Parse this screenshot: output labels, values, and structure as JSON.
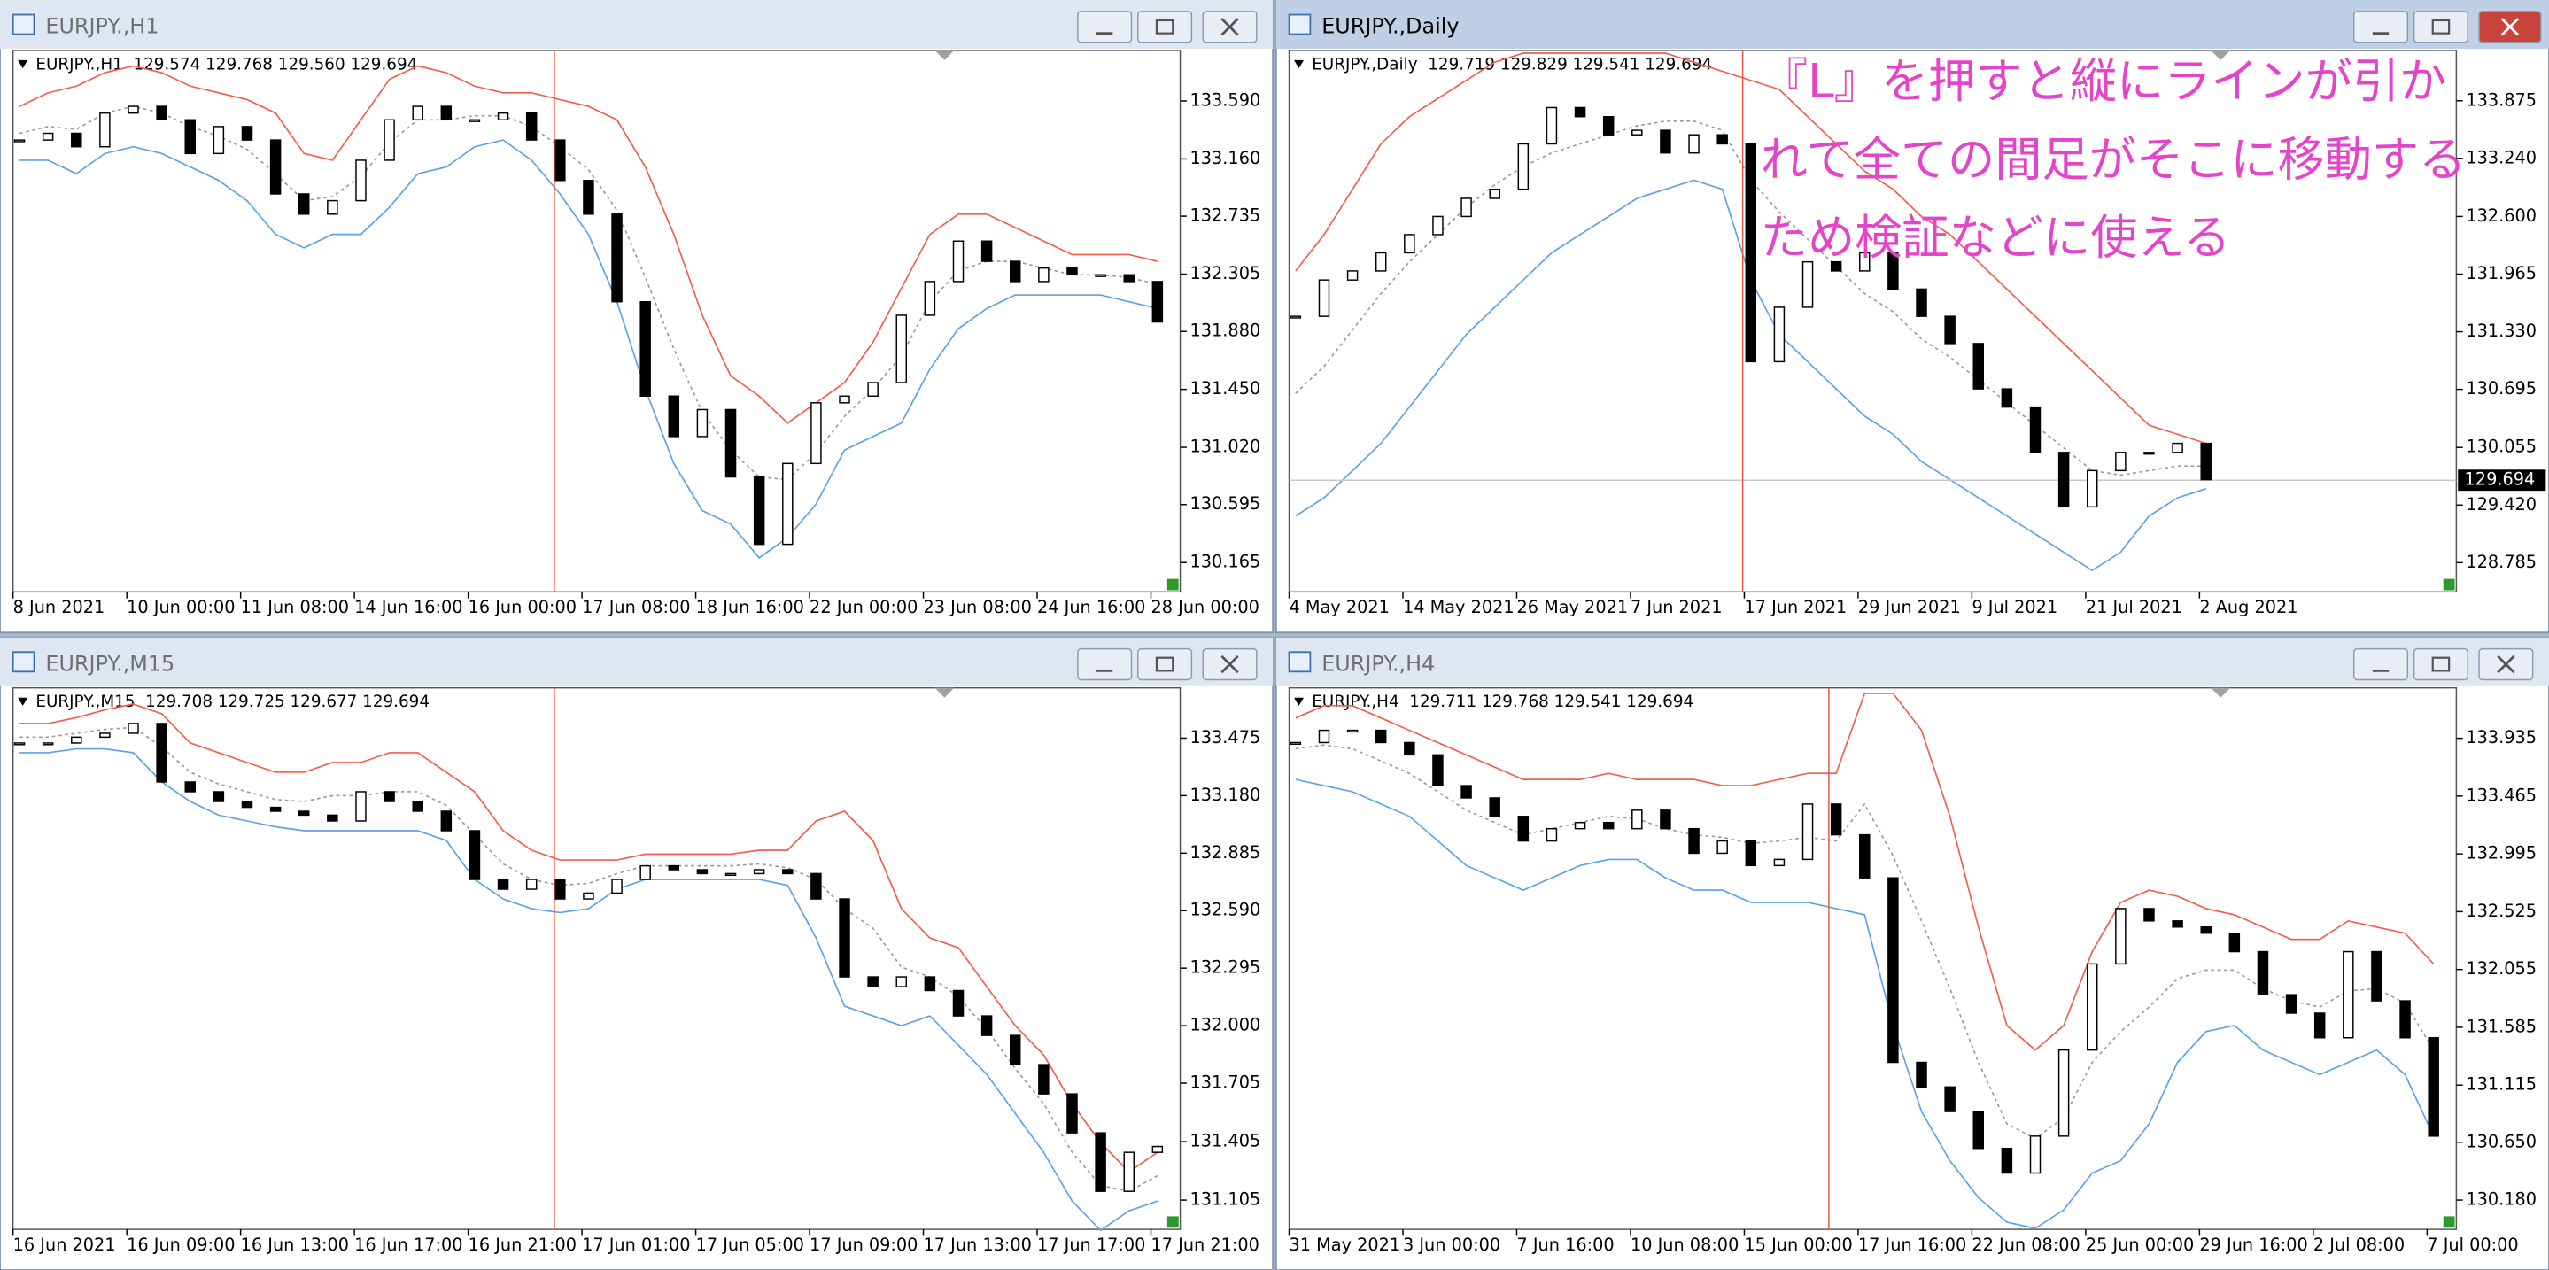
{
  "chart_data": [
    {
      "type": "candlestick",
      "window_title": "EURJPY.,H1",
      "header": "EURJPY.,H1  129.574 129.768 129.560 129.694",
      "categories": [
        "8 Jun 2021",
        null,
        null,
        null,
        "10 Jun 00:00",
        null,
        null,
        null,
        "11 Jun 08:00",
        null,
        null,
        null,
        "14 Jun 16:00",
        null,
        null,
        null,
        "16 Jun 00:00",
        null,
        null,
        null,
        "17 Jun 08:00",
        null,
        null,
        null,
        "18 Jun 16:00",
        null,
        null,
        null,
        "22 Jun 00:00",
        null,
        null,
        null,
        "23 Jun 08:00",
        null,
        null,
        null,
        "24 Jun 16:00",
        null,
        null,
        null,
        "28 Jun 00:00"
      ],
      "close": [
        133.3,
        133.35,
        133.25,
        133.5,
        133.55,
        133.45,
        133.2,
        133.4,
        133.3,
        132.9,
        132.75,
        132.85,
        133.15,
        133.45,
        133.55,
        133.45,
        133.45,
        133.5,
        133.3,
        133.0,
        132.75,
        132.1,
        131.4,
        131.1,
        131.3,
        130.8,
        130.3,
        130.9,
        131.35,
        131.4,
        131.5,
        132.0,
        132.25,
        132.55,
        132.4,
        132.25,
        132.35,
        132.3,
        132.3,
        132.25,
        131.95
      ],
      "upper_band": [
        133.55,
        133.65,
        133.7,
        133.8,
        133.85,
        133.8,
        133.7,
        133.65,
        133.6,
        133.5,
        133.2,
        133.15,
        133.45,
        133.75,
        133.85,
        133.8,
        133.7,
        133.65,
        133.65,
        133.6,
        133.55,
        133.45,
        133.1,
        132.6,
        132.0,
        131.55,
        131.4,
        131.2,
        131.35,
        131.5,
        131.8,
        132.2,
        132.6,
        132.75,
        132.75,
        132.65,
        132.55,
        132.45,
        132.45,
        132.45,
        132.4
      ],
      "middle_band": [
        133.35,
        133.4,
        133.38,
        133.5,
        133.55,
        133.5,
        133.4,
        133.33,
        133.23,
        133.05,
        132.85,
        132.88,
        133.03,
        133.28,
        133.45,
        133.45,
        133.48,
        133.48,
        133.4,
        133.25,
        133.08,
        132.78,
        132.28,
        131.75,
        131.28,
        131.0,
        130.8,
        130.78,
        130.98,
        131.25,
        131.45,
        131.7,
        132.1,
        132.33,
        132.4,
        132.4,
        132.35,
        132.3,
        132.3,
        132.28,
        132.23
      ],
      "lower_band": [
        133.15,
        133.15,
        133.05,
        133.2,
        133.25,
        133.2,
        133.1,
        133.0,
        132.85,
        132.6,
        132.5,
        132.6,
        132.6,
        132.8,
        133.05,
        133.1,
        133.25,
        133.3,
        133.15,
        132.9,
        132.6,
        132.1,
        131.45,
        130.9,
        130.55,
        130.45,
        130.2,
        130.35,
        130.6,
        131.0,
        131.1,
        131.2,
        131.6,
        131.9,
        132.05,
        132.15,
        132.15,
        132.15,
        132.15,
        132.1,
        132.05
      ],
      "ylim": [
        129.947,
        133.965
      ],
      "yticks": [
        {
          "value": 133.59,
          "label": "133.590"
        },
        {
          "value": 133.16,
          "label": "133.160"
        },
        132.735,
        132.305,
        {
          "value": 131.88,
          "label": "131.880"
        },
        {
          "value": 131.45,
          "label": "131.450"
        },
        {
          "value": 131.02,
          "label": "131.020"
        },
        130.595,
        130.165
      ],
      "bull_color": "#ffffff",
      "bear_color": "#000000",
      "upper_color": "#f25c4c",
      "middle_color": "#9a9a9a",
      "lower_color": "#5aa2e6"
    },
    {
      "type": "candlestick",
      "window_title": "EURJPY.,Daily",
      "header": "EURJPY.,Daily  129.719 129.829 129.541 129.694",
      "categories": [
        "4 May 2021",
        null,
        null,
        null,
        "14 May 2021",
        null,
        null,
        null,
        "26 May 2021",
        null,
        null,
        null,
        "7 Jun 2021",
        null,
        null,
        null,
        "17 Jun 2021",
        null,
        null,
        null,
        "29 Jun 2021",
        null,
        null,
        null,
        "9 Jul 2021",
        null,
        null,
        null,
        "21 Jul 2021",
        null,
        null,
        null,
        "2 Aug 2021"
      ],
      "close": [
        131.5,
        131.9,
        132.0,
        132.2,
        132.4,
        132.6,
        132.8,
        132.9,
        133.4,
        133.8,
        133.7,
        133.5,
        133.55,
        133.3,
        133.5,
        133.4,
        131.0,
        131.6,
        132.1,
        132.0,
        132.2,
        131.8,
        131.5,
        131.2,
        130.7,
        130.5,
        130.0,
        129.4,
        129.8,
        130.0,
        130.0,
        130.1,
        129.7
      ],
      "upper_band": [
        132.0,
        132.4,
        132.9,
        133.4,
        133.7,
        133.9,
        134.1,
        134.3,
        134.4,
        134.4,
        134.4,
        134.4,
        134.4,
        134.4,
        134.3,
        134.2,
        134.1,
        134.0,
        133.7,
        133.4,
        133.1,
        132.9,
        132.6,
        132.4,
        132.1,
        131.8,
        131.5,
        131.2,
        130.9,
        130.6,
        130.3,
        130.2,
        130.1
      ],
      "middle_band": [
        130.65,
        130.95,
        131.35,
        131.75,
        132.1,
        132.4,
        132.7,
        132.95,
        133.15,
        133.3,
        133.4,
        133.5,
        133.6,
        133.65,
        133.65,
        133.55,
        133.0,
        132.65,
        132.35,
        132.05,
        131.75,
        131.55,
        131.25,
        131.05,
        130.8,
        130.55,
        130.3,
        130.05,
        129.8,
        129.75,
        129.8,
        129.85,
        129.85
      ],
      "lower_band": [
        129.3,
        129.5,
        129.8,
        130.1,
        130.5,
        130.9,
        131.3,
        131.6,
        131.9,
        132.2,
        132.4,
        132.6,
        132.8,
        132.9,
        133.0,
        132.9,
        131.9,
        131.3,
        131.0,
        130.7,
        130.4,
        130.2,
        129.9,
        129.7,
        129.5,
        129.3,
        129.1,
        128.9,
        128.7,
        128.9,
        129.3,
        129.5,
        129.6
      ],
      "ylim": [
        128.463,
        134.43
      ],
      "yticks": [
        133.875,
        {
          "value": 133.24,
          "label": "133.240"
        },
        {
          "value": 132.6,
          "label": "132.600"
        },
        131.965,
        {
          "value": 131.33,
          "label": "131.330"
        },
        130.695,
        130.055,
        {
          "value": 129.42,
          "label": "129.420"
        },
        128.785
      ],
      "price_line": 129.694,
      "annotation": [
        "『L』を押すと縦にラインが引か",
        "れて全ての間足がそこに移動する",
        "ため検証などに使える"
      ],
      "annotation_color": "#e444c8",
      "bull_color": "#ffffff",
      "bear_color": "#000000",
      "upper_color": "#f25c4c",
      "middle_color": "#9a9a9a",
      "lower_color": "#5aa2e6"
    },
    {
      "type": "candlestick",
      "window_title": "EURJPY.,M15",
      "header": "EURJPY.,M15  129.708 129.725 129.677 129.694",
      "categories": [
        "16 Jun 2021",
        null,
        null,
        null,
        "16 Jun 09:00",
        null,
        null,
        null,
        "16 Jun 13:00",
        null,
        null,
        null,
        "16 Jun 17:00",
        null,
        null,
        null,
        "16 Jun 21:00",
        null,
        null,
        null,
        "17 Jun 01:00",
        null,
        null,
        null,
        "17 Jun 05:00",
        null,
        null,
        null,
        "17 Jun 09:00",
        null,
        null,
        null,
        "17 Jun 13:00",
        null,
        null,
        null,
        "17 Jun 17:00",
        null,
        null,
        null,
        "17 Jun 21:00"
      ],
      "close": [
        133.45,
        133.45,
        133.48,
        133.5,
        133.55,
        133.25,
        133.2,
        133.15,
        133.12,
        133.1,
        133.08,
        133.05,
        133.2,
        133.15,
        133.1,
        133.0,
        132.75,
        132.7,
        132.75,
        132.65,
        132.68,
        132.75,
        132.82,
        132.8,
        132.78,
        132.78,
        132.8,
        132.78,
        132.65,
        132.25,
        132.2,
        132.25,
        132.18,
        132.05,
        131.95,
        131.8,
        131.65,
        131.45,
        131.15,
        131.35,
        131.38
      ],
      "upper_band": [
        133.55,
        133.55,
        133.58,
        133.62,
        133.65,
        133.6,
        133.45,
        133.4,
        133.35,
        133.3,
        133.3,
        133.35,
        133.35,
        133.4,
        133.4,
        133.3,
        133.2,
        133.0,
        132.9,
        132.85,
        132.85,
        132.85,
        132.88,
        132.88,
        132.88,
        132.88,
        132.9,
        132.9,
        133.05,
        133.1,
        132.95,
        132.6,
        132.45,
        132.4,
        132.2,
        132.0,
        131.85,
        131.6,
        131.4,
        131.25,
        131.35
      ],
      "middle_band": [
        133.48,
        133.48,
        133.5,
        133.52,
        133.53,
        133.43,
        133.3,
        133.24,
        133.2,
        133.16,
        133.15,
        133.18,
        133.18,
        133.2,
        133.2,
        133.13,
        132.98,
        132.83,
        132.75,
        132.72,
        132.73,
        132.78,
        132.82,
        132.82,
        132.82,
        132.82,
        132.83,
        132.81,
        132.75,
        132.6,
        132.5,
        132.3,
        132.25,
        132.15,
        131.98,
        131.78,
        131.6,
        131.35,
        131.18,
        131.15,
        131.23
      ],
      "lower_band": [
        133.4,
        133.4,
        133.42,
        133.42,
        133.4,
        133.25,
        133.15,
        133.08,
        133.05,
        133.02,
        133.0,
        133.0,
        133.0,
        133.0,
        133.0,
        132.95,
        132.75,
        132.65,
        132.6,
        132.58,
        132.6,
        132.7,
        132.75,
        132.75,
        132.75,
        132.75,
        132.75,
        132.72,
        132.45,
        132.1,
        132.05,
        132.0,
        132.05,
        131.9,
        131.75,
        131.55,
        131.35,
        131.1,
        130.95,
        131.05,
        131.1
      ],
      "ylim": [
        130.955,
        133.733
      ],
      "yticks": [
        133.475,
        {
          "value": 133.18,
          "label": "133.180"
        },
        132.885,
        {
          "value": 132.59,
          "label": "132.590"
        },
        132.295,
        {
          "value": 132,
          "label": "132.000"
        },
        131.705,
        131.405,
        131.105
      ],
      "bull_color": "#ffffff",
      "bear_color": "#000000",
      "upper_color": "#f25c4c",
      "middle_color": "#9a9a9a",
      "lower_color": "#5aa2e6"
    },
    {
      "type": "candlestick",
      "window_title": "EURJPY.,H4",
      "header": "EURJPY.,H4  129.711 129.768 129.541 129.694",
      "categories": [
        "31 May 2021",
        null,
        null,
        null,
        "3 Jun 00:00",
        null,
        null,
        null,
        "7 Jun 16:00",
        null,
        null,
        null,
        "10 Jun 08:00",
        null,
        null,
        null,
        "15 Jun 00:00",
        null,
        null,
        null,
        "17 Jun 16:00",
        null,
        null,
        null,
        "22 Jun 08:00",
        null,
        null,
        null,
        "25 Jun 00:00",
        null,
        null,
        null,
        "29 Jun 16:00",
        null,
        null,
        null,
        "2 Jul 08:00",
        null,
        null,
        null,
        "7 Jul 00:00"
      ],
      "close": [
        133.9,
        134.0,
        134.0,
        133.9,
        133.8,
        133.55,
        133.45,
        133.3,
        133.1,
        133.2,
        133.25,
        133.2,
        133.35,
        133.2,
        133.0,
        133.1,
        132.9,
        132.95,
        133.4,
        133.15,
        132.8,
        131.3,
        131.1,
        130.9,
        130.6,
        130.4,
        130.7,
        131.4,
        132.1,
        132.55,
        132.45,
        132.4,
        132.35,
        132.2,
        131.85,
        131.7,
        131.5,
        132.2,
        131.8,
        131.5,
        130.7
      ],
      "upper_band": [
        134.1,
        134.2,
        134.2,
        134.1,
        134.0,
        133.9,
        133.8,
        133.7,
        133.6,
        133.6,
        133.6,
        133.65,
        133.6,
        133.6,
        133.6,
        133.55,
        133.55,
        133.6,
        133.65,
        133.65,
        134.3,
        134.3,
        134.0,
        133.3,
        132.4,
        131.6,
        131.4,
        131.6,
        132.2,
        132.6,
        132.7,
        132.65,
        132.55,
        132.5,
        132.4,
        132.3,
        132.3,
        132.45,
        132.4,
        132.35,
        132.1
      ],
      "middle_band": [
        133.85,
        133.88,
        133.85,
        133.75,
        133.65,
        133.5,
        133.35,
        133.25,
        133.15,
        133.2,
        133.25,
        133.3,
        133.28,
        133.2,
        133.15,
        133.13,
        133.08,
        133.1,
        133.13,
        133.1,
        133.4,
        132.98,
        132.45,
        131.9,
        131.3,
        130.8,
        130.68,
        130.85,
        131.3,
        131.55,
        131.75,
        131.98,
        132.05,
        132.05,
        131.9,
        131.8,
        131.75,
        131.88,
        131.9,
        131.78,
        131.4
      ],
      "lower_band": [
        133.6,
        133.55,
        133.5,
        133.4,
        133.3,
        133.1,
        132.9,
        132.8,
        132.7,
        132.8,
        132.9,
        132.95,
        132.95,
        132.8,
        132.7,
        132.7,
        132.6,
        132.6,
        132.6,
        132.55,
        132.5,
        131.6,
        130.9,
        130.5,
        130.2,
        130.0,
        129.95,
        130.1,
        130.4,
        130.5,
        130.8,
        131.3,
        131.55,
        131.6,
        131.4,
        131.3,
        131.2,
        131.3,
        131.4,
        131.2,
        130.7
      ],
      "ylim": [
        129.942,
        134.345
      ],
      "yticks": [
        133.935,
        133.465,
        132.995,
        132.525,
        132.055,
        131.585,
        131.115,
        {
          "value": 130.65,
          "label": "130.650"
        },
        {
          "value": 130.18,
          "label": "130.180"
        }
      ],
      "bull_color": "#ffffff",
      "bear_color": "#000000",
      "upper_color": "#f25c4c",
      "middle_color": "#9a9a9a",
      "lower_color": "#5aa2e6"
    }
  ]
}
